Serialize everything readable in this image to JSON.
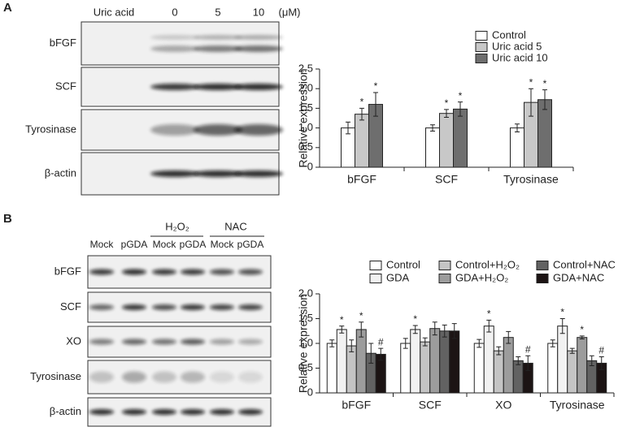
{
  "panel_a": {
    "label": "A",
    "treatment": "Uric acid",
    "doses": [
      "0",
      "5",
      "10"
    ],
    "unit": "(μM)",
    "rows": [
      "bFGF",
      "SCF",
      "Tyrosinase",
      "β-actin"
    ]
  },
  "panel_b": {
    "label": "B",
    "lanes": [
      "Mock",
      "pGDA",
      "Mock",
      "pGDA",
      "Mock",
      "pGDA"
    ],
    "groups": [
      "H₂O₂",
      "NAC"
    ],
    "rows": [
      "bFGF",
      "SCF",
      "XO",
      "Tyrosinase",
      "β-actin"
    ]
  },
  "chart_data": [
    {
      "type": "bar",
      "ylabel": "Relative expression",
      "categories": [
        "bFGF",
        "SCF",
        "Tyrosinase"
      ],
      "ylim": [
        0,
        2.5
      ],
      "yticks": [
        0,
        0.5,
        {
          "value": 1,
          "label": "1.0"
        },
        1.5,
        {
          "value": 2,
          "label": "2.0"
        },
        2.5
      ],
      "series": [
        {
          "name": "Control",
          "color": "#ffffff",
          "values": [
            1.0,
            1.0,
            1.0
          ],
          "errors": [
            0.15,
            0.08,
            0.1
          ],
          "markers": [
            null,
            null,
            null
          ]
        },
        {
          "name": "Uric acid 5",
          "color": "#c8c8c8",
          "values": [
            1.35,
            1.37,
            1.65
          ],
          "errors": [
            0.15,
            0.1,
            0.35
          ],
          "markers": [
            "*",
            "*",
            "*"
          ]
        },
        {
          "name": "Uric acid 10",
          "color": "#6e6e6e",
          "values": [
            1.6,
            1.48,
            1.72
          ],
          "errors": [
            0.3,
            0.18,
            0.25
          ],
          "markers": [
            "*",
            "*",
            "*"
          ]
        }
      ]
    },
    {
      "type": "bar",
      "ylabel": "Relative expression",
      "categories": [
        "bFGF",
        "SCF",
        "XO",
        "Tyrosinase"
      ],
      "ylim": [
        0,
        2
      ],
      "yticks": [
        0,
        0.5,
        {
          "value": 1,
          "label": "1.0"
        },
        1.5,
        {
          "value": 2,
          "label": "2.0"
        }
      ],
      "series": [
        {
          "name": "Control",
          "color": "#ffffff",
          "values": [
            1.0,
            1.0,
            1.0,
            1.0
          ],
          "errors": [
            0.07,
            0.1,
            0.08,
            0.07
          ],
          "markers": [
            null,
            null,
            null,
            null
          ]
        },
        {
          "name": "GDA",
          "color": "#f2f2f2",
          "values": [
            1.28,
            1.28,
            1.35,
            1.35
          ],
          "errors": [
            0.07,
            0.08,
            0.12,
            0.15
          ],
          "markers": [
            "*",
            "*",
            "*",
            "*"
          ]
        },
        {
          "name": "Control+H₂O₂",
          "color": "#c4c4c4",
          "values": [
            0.95,
            1.03,
            0.85,
            0.85
          ],
          "errors": [
            0.12,
            0.08,
            0.08,
            0.05
          ],
          "markers": [
            null,
            null,
            null,
            null
          ]
        },
        {
          "name": "GDA+H₂O₂",
          "color": "#9c9c9c",
          "values": [
            1.28,
            1.3,
            1.12,
            1.12
          ],
          "errors": [
            0.15,
            0.13,
            0.12,
            0.03
          ],
          "markers": [
            "*",
            null,
            null,
            "*"
          ]
        },
        {
          "name": "Control+NAC",
          "color": "#626262",
          "values": [
            0.8,
            1.25,
            0.65,
            0.65
          ],
          "errors": [
            0.2,
            0.12,
            0.08,
            0.1
          ],
          "markers": [
            null,
            null,
            null,
            null
          ]
        },
        {
          "name": "GDA+NAC",
          "color": "#1c1414",
          "values": [
            0.78,
            1.25,
            0.6,
            0.6
          ],
          "errors": [
            0.12,
            0.15,
            0.15,
            0.13
          ],
          "markers": [
            "#",
            null,
            "#",
            "#"
          ]
        }
      ]
    }
  ]
}
